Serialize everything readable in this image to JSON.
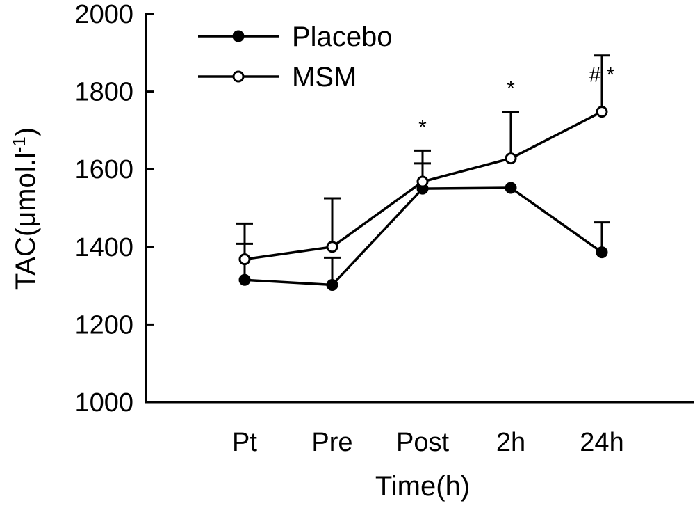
{
  "chart_data": {
    "type": "line",
    "title": "",
    "xlabel": "Time(h)",
    "ylabel": "TAC(μmol.l-1)",
    "ylabel_parts": {
      "main": "TAC(μmol.l",
      "sup": "-1",
      "close": ")"
    },
    "categories": [
      "Pt",
      "Pre",
      "Post",
      "2h",
      "24h"
    ],
    "ylim": [
      1000,
      2000
    ],
    "yticks": [
      "1000",
      "1200",
      "1400",
      "1600",
      "1800",
      "2000"
    ],
    "legend_position": "top-left",
    "series": [
      {
        "name": "Placebo",
        "marker": "filled-circle",
        "values": [
          1315,
          1302,
          1550,
          1552,
          1386
        ],
        "error_upper": [
          1408,
          1372,
          1615,
          null,
          1463
        ]
      },
      {
        "name": "MSM",
        "marker": "open-circle",
        "values": [
          1368,
          1400,
          1568,
          1628,
          1748
        ],
        "error_upper": [
          1460,
          1525,
          1648,
          1748,
          1893
        ]
      }
    ],
    "annotations": [
      {
        "category": "Post",
        "text": "*",
        "y": 1690
      },
      {
        "category": "2h",
        "text": "*",
        "y": 1790
      },
      {
        "category": "24h",
        "text": "# *",
        "y": 1825
      }
    ],
    "colors": {
      "line": "#000000",
      "background": "#ffffff"
    }
  }
}
